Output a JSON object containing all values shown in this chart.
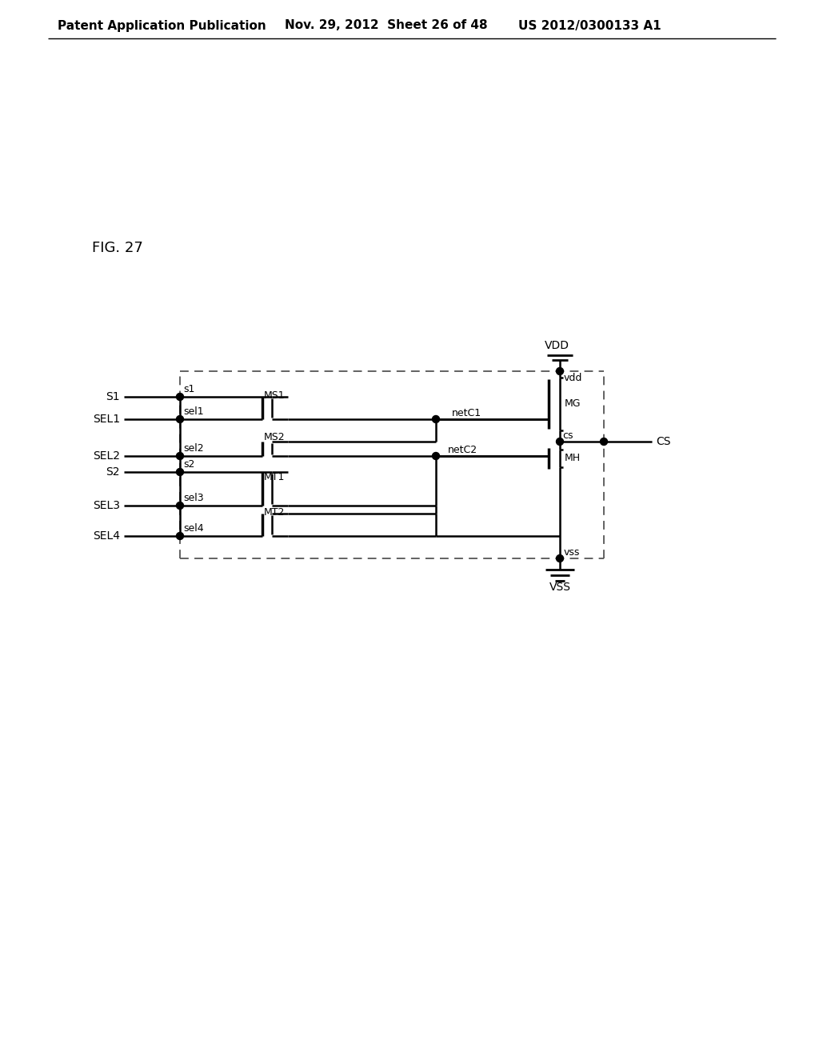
{
  "title_left": "Patent Application Publication",
  "title_mid": "Nov. 29, 2012  Sheet 26 of 48",
  "title_right": "US 2012/0300133 A1",
  "fig_label": "FIG. 27",
  "background": "#ffffff",
  "font_size_header": 11,
  "font_size_label": 10,
  "font_size_small": 9,
  "lw": 1.8,
  "dot_r": 4.5
}
